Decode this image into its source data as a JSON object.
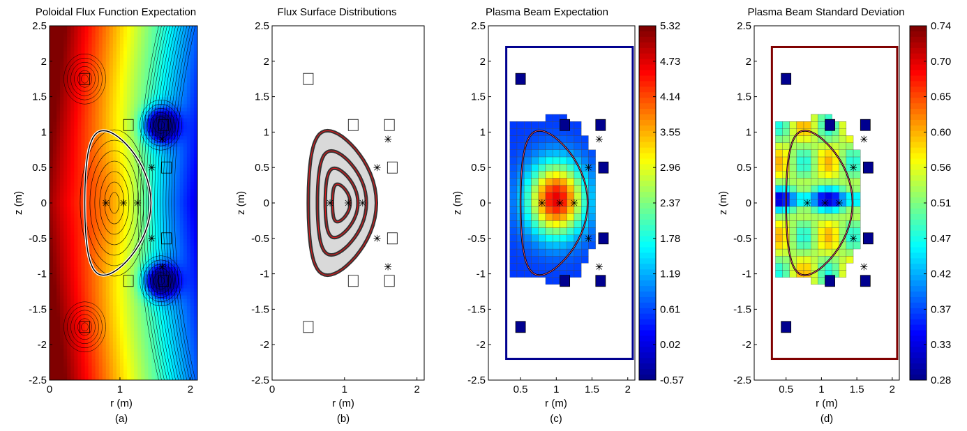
{
  "colors": {
    "jet_low": "#00008f",
    "jet_high": "#800000",
    "grid": "#000000",
    "highlight_red": "#e31a1c",
    "boundary_pink": "#ff5a8a"
  },
  "chart_data": [
    {
      "type": "heatmap",
      "title": "Poloidal Flux Function Expectation",
      "panel_label": "(a)",
      "xlabel": "r (m)",
      "ylabel": "z (m)",
      "xlim": [
        0,
        2.1
      ],
      "ylim": [
        -2.5,
        2.5
      ],
      "xticks": [
        "0",
        "1",
        "2"
      ],
      "yticks": [
        "2.5",
        "2",
        "1.5",
        "1",
        "0.5",
        "0",
        "-0.5",
        "-1",
        "-1.5",
        "-2",
        "-2.5"
      ],
      "colormap": "jet",
      "colorbar": null,
      "overlays": [
        "contour lines",
        "plasma boundary (white/black)"
      ]
    },
    {
      "type": "heatmap",
      "title": "Flux Surface Distributions",
      "panel_label": "(b)",
      "xlabel": "r (m)",
      "ylabel": "z (m)",
      "xlim": [
        0,
        2.1
      ],
      "ylim": [
        -2.5,
        2.5
      ],
      "xticks": [
        "0",
        "1",
        "2"
      ],
      "yticks": [
        "2.5",
        "2",
        "1.5",
        "1",
        "0.5",
        "0",
        "-0.5",
        "-1",
        "-1.5",
        "-2",
        "-2.5"
      ],
      "colormap": "gray",
      "colorbar": null,
      "overlays": [
        "nested flux surfaces (red lines)"
      ]
    },
    {
      "type": "heatmap",
      "title": "Plasma Beam Expectation",
      "panel_label": "(c)",
      "xlabel": "r (m)",
      "ylabel": "z (m)",
      "xlim": [
        0.05,
        2.1
      ],
      "ylim": [
        -2.5,
        2.5
      ],
      "xticks": [
        "0.5",
        "1",
        "1.5",
        "2"
      ],
      "yticks": [
        "2.5",
        "2",
        "1.5",
        "1",
        "0.5",
        "0",
        "-0.5",
        "-1",
        "-1.5",
        "-2",
        "-2.5"
      ],
      "colormap": "jet",
      "colorbar": {
        "min": -0.57,
        "max": 5.32,
        "ticks": [
          "5.32",
          "4.73",
          "4.14",
          "3.55",
          "2.96",
          "2.37",
          "1.78",
          "1.19",
          "0.61",
          "0.02",
          "-0.57"
        ]
      },
      "overlays": [
        "plasma boundary (black/pink)"
      ]
    },
    {
      "type": "heatmap",
      "title": "Plasma Beam Standard Deviation",
      "panel_label": "(d)",
      "xlabel": "r (m)",
      "ylabel": "z (m)",
      "xlim": [
        0.05,
        2.1
      ],
      "ylim": [
        -2.5,
        2.5
      ],
      "xticks": [
        "0.5",
        "1",
        "1.5",
        "2"
      ],
      "yticks": [
        "2.5",
        "2",
        "1.5",
        "1",
        "0.5",
        "0",
        "-0.5",
        "-1",
        "-1.5",
        "-2",
        "-2.5"
      ],
      "colormap": "jet",
      "colorbar": {
        "min": 0.28,
        "max": 0.74,
        "ticks": [
          "0.74",
          "0.70",
          "0.65",
          "0.60",
          "0.56",
          "0.51",
          "0.47",
          "0.42",
          "0.37",
          "0.33",
          "0.28"
        ]
      },
      "overlays": [
        "plasma boundary (black/pink)"
      ]
    }
  ]
}
